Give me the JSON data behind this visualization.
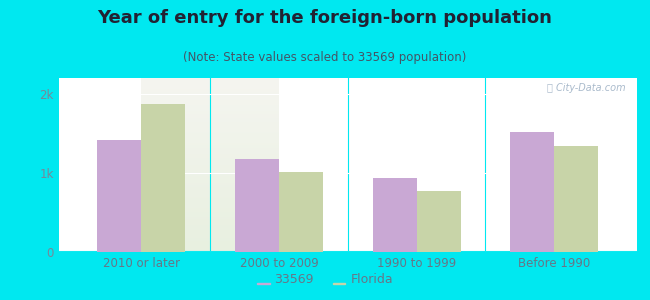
{
  "title": "Year of entry for the foreign-born population",
  "subtitle": "(Note: State values scaled to 33569 population)",
  "categories": [
    "2010 or later",
    "2000 to 2009",
    "1990 to 1999",
    "Before 1990"
  ],
  "values_33569": [
    1420,
    1180,
    940,
    1520
  ],
  "values_florida": [
    1870,
    1010,
    770,
    1340
  ],
  "color_33569": "#c9a8d4",
  "color_florida": "#c8d4a8",
  "background_outer": "#00e8f0",
  "background_inner_top": "#f5f5f0",
  "background_inner_bottom": "#e8f0e0",
  "yticks": [
    0,
    1000,
    2000
  ],
  "ytick_labels": [
    "0",
    "1k",
    "2k"
  ],
  "ylim": [
    0,
    2200
  ],
  "legend_33569": "33569",
  "legend_florida": "Florida",
  "bar_width": 0.32,
  "title_fontsize": 13,
  "subtitle_fontsize": 8.5,
  "tick_label_fontsize": 8.5,
  "legend_fontsize": 9,
  "title_color": "#222233",
  "subtitle_color": "#445566",
  "tick_color": "#778899",
  "xticklabel_color": "#667788"
}
